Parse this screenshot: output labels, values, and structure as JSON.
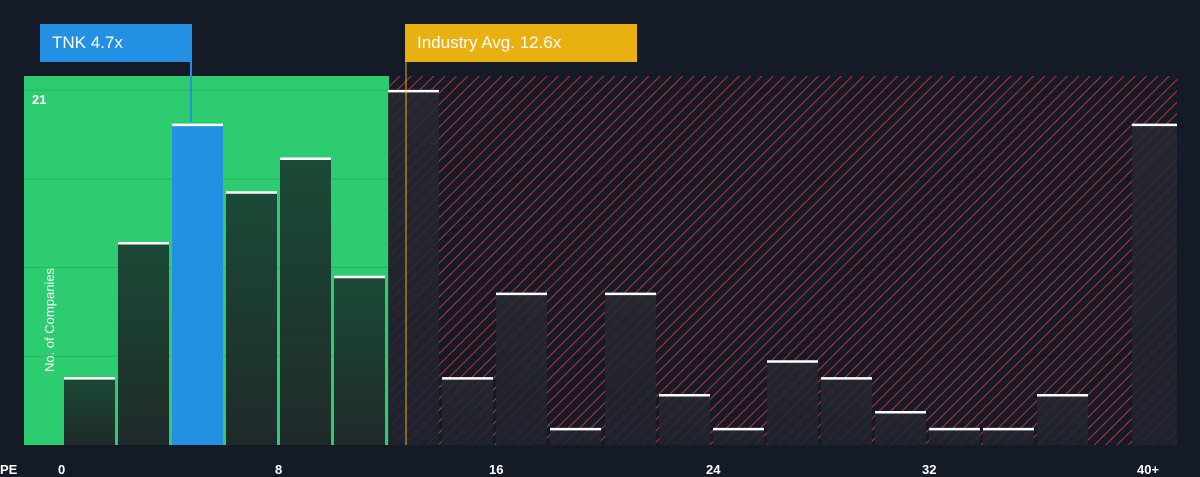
{
  "chart_data": {
    "type": "bar",
    "xlabel": "PE",
    "ylabel": "No. of Companies",
    "x_ticks": [
      "0",
      "8",
      "16",
      "24",
      "32",
      "40+"
    ],
    "y_ticks": [
      "21"
    ],
    "xlim": [
      0,
      40.5
    ],
    "ylim": [
      0,
      22
    ],
    "bin_width": 2,
    "bins": [
      {
        "x": 1,
        "value": 4,
        "region": "below"
      },
      {
        "x": 3,
        "value": 12,
        "region": "below"
      },
      {
        "x": 5,
        "value": 19,
        "region": "company"
      },
      {
        "x": 7,
        "value": 15,
        "region": "below"
      },
      {
        "x": 9,
        "value": 17,
        "region": "below"
      },
      {
        "x": 11,
        "value": 10,
        "region": "below"
      },
      {
        "x": 13,
        "value": 21,
        "region": "above"
      },
      {
        "x": 15,
        "value": 4,
        "region": "above"
      },
      {
        "x": 17,
        "value": 9,
        "region": "above"
      },
      {
        "x": 19,
        "value": 1,
        "region": "above"
      },
      {
        "x": 21,
        "value": 9,
        "region": "above"
      },
      {
        "x": 23,
        "value": 3,
        "region": "above"
      },
      {
        "x": 25,
        "value": 1,
        "region": "above"
      },
      {
        "x": 27,
        "value": 5,
        "region": "above"
      },
      {
        "x": 29,
        "value": 4,
        "region": "above"
      },
      {
        "x": 31,
        "value": 2,
        "region": "above"
      },
      {
        "x": 33,
        "value": 1,
        "region": "above"
      },
      {
        "x": 35,
        "value": 1,
        "region": "above"
      },
      {
        "x": 37,
        "value": 3,
        "region": "above"
      },
      {
        "x": 40.5,
        "value": 19,
        "region": "above"
      }
    ],
    "company": {
      "label": "TNK 4.7x",
      "value": 4.7
    },
    "industry": {
      "label": "Industry Avg. 12.6x",
      "value": 12.6
    },
    "colors": {
      "background": "#151b26",
      "below_region": "#2ecc71",
      "company_bar": "#2490e3",
      "company_callout": "#2490e3",
      "industry_callout": "#e8b011",
      "above_hatch": "#c0303a",
      "bar_top": "#ffffff"
    }
  }
}
